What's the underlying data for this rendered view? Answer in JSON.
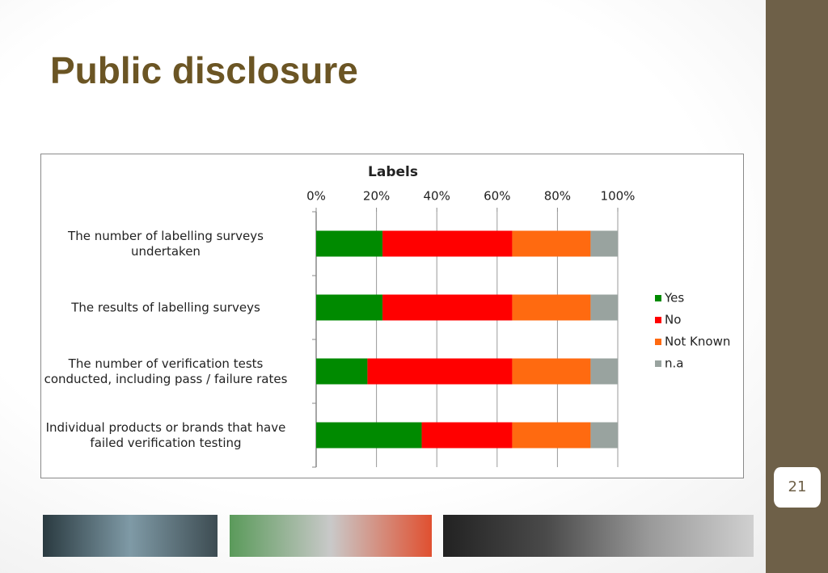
{
  "slide": {
    "title": "Public disclosure",
    "page_number": "21"
  },
  "chart_data": {
    "type": "stacked-barh",
    "title": "Labels",
    "categories": [
      "The number of labelling surveys\nundertaken",
      "The results of labelling surveys",
      "The number of verification tests\nconducted, including pass / failure rates",
      "Individual products or brands that have\nfailed verification testing"
    ],
    "series": [
      {
        "name": "Yes",
        "color": "#008a00",
        "values": [
          22,
          22,
          17,
          35
        ]
      },
      {
        "name": "No",
        "color": "#ff0000",
        "values": [
          43,
          43,
          48,
          30
        ]
      },
      {
        "name": "Not Known",
        "color": "#ff6a10",
        "values": [
          26,
          26,
          26,
          26
        ]
      },
      {
        "name": "n.a",
        "color": "#99a39f",
        "values": [
          9,
          9,
          9,
          9
        ]
      }
    ],
    "xlim": [
      0,
      100
    ],
    "xticks": [
      {
        "value": 0,
        "label": "0%"
      },
      {
        "value": 20,
        "label": "20%"
      },
      {
        "value": 40,
        "label": "40%"
      },
      {
        "value": 60,
        "label": "60%"
      },
      {
        "value": 80,
        "label": "80%"
      },
      {
        "value": 100,
        "label": "100%"
      }
    ],
    "grid": true,
    "legend": "right"
  }
}
